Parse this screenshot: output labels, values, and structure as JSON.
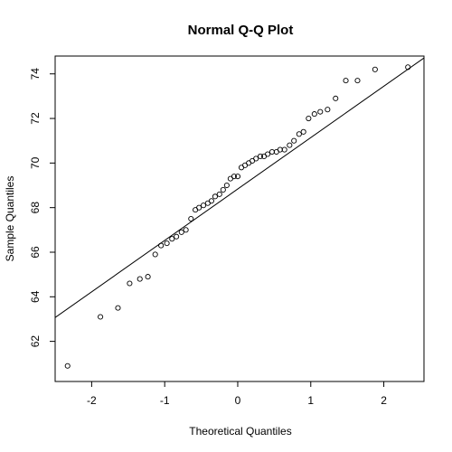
{
  "chart_data": {
    "type": "scatter",
    "title": "Normal Q-Q Plot",
    "xlabel": "Theoretical Quantiles",
    "ylabel": "Sample Quantiles",
    "xlim": [
      -2.5,
      2.55
    ],
    "ylim": [
      60.2,
      74.8
    ],
    "x_ticks": [
      -2,
      -1,
      0,
      1,
      2
    ],
    "y_ticks": [
      62,
      64,
      66,
      68,
      70,
      72,
      74
    ],
    "grid": false,
    "reference_line": {
      "through": [
        [
          -2.4,
          63.3
        ],
        [
          2.5,
          74.6
        ]
      ]
    },
    "points": {
      "x": [
        -2.33,
        -1.88,
        -1.64,
        -1.48,
        -1.34,
        -1.23,
        -1.13,
        -1.05,
        -0.97,
        -0.9,
        -0.84,
        -0.77,
        -0.71,
        -0.64,
        -0.58,
        -0.53,
        -0.47,
        -0.41,
        -0.36,
        -0.31,
        -0.25,
        -0.2,
        -0.15,
        -0.1,
        -0.05,
        0.0,
        0.05,
        0.1,
        0.15,
        0.2,
        0.25,
        0.31,
        0.36,
        0.41,
        0.47,
        0.53,
        0.58,
        0.64,
        0.71,
        0.77,
        0.84,
        0.9,
        0.97,
        1.05,
        1.13,
        1.23,
        1.34,
        1.48,
        1.64,
        1.88,
        2.33
      ],
      "y": [
        60.9,
        63.1,
        63.5,
        64.6,
        64.8,
        64.9,
        65.9,
        66.3,
        66.4,
        66.6,
        66.7,
        66.9,
        67.0,
        67.5,
        67.9,
        68.0,
        68.1,
        68.2,
        68.3,
        68.5,
        68.6,
        68.8,
        69.0,
        69.3,
        69.4,
        69.4,
        69.8,
        69.9,
        70.0,
        70.1,
        70.2,
        70.3,
        70.3,
        70.4,
        70.5,
        70.5,
        70.6,
        70.6,
        70.8,
        71.0,
        71.3,
        71.4,
        72.0,
        72.2,
        72.3,
        72.4,
        72.9,
        73.7,
        73.7,
        74.2,
        74.3
      ]
    }
  }
}
